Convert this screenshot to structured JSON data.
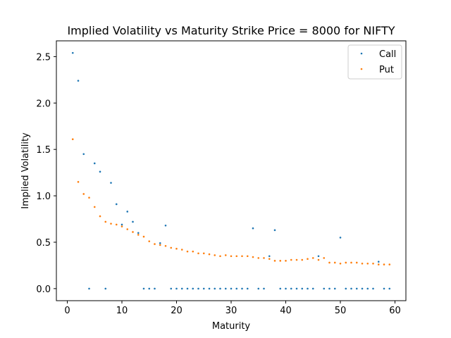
{
  "chart_data": {
    "type": "scatter",
    "title": "Implied Volatility vs Maturity Strike Price = 8000 for NIFTY",
    "xlabel": "Maturity",
    "ylabel": "Implied Volatility",
    "xlim": [
      -2,
      62
    ],
    "ylim": [
      -0.13,
      2.67
    ],
    "xticks": [
      0,
      10,
      20,
      30,
      40,
      50,
      60
    ],
    "yticks": [
      0.0,
      0.5,
      1.0,
      1.5,
      2.0,
      2.5
    ],
    "xtick_labels": [
      "0",
      "10",
      "20",
      "30",
      "40",
      "50",
      "60"
    ],
    "ytick_labels": [
      "0.0",
      "0.5",
      "1.0",
      "1.5",
      "2.0",
      "2.5"
    ],
    "grid": false,
    "legend_position": "top-right",
    "series": [
      {
        "name": "Call",
        "color": "#1f77b4",
        "points": [
          [
            1,
            2.54
          ],
          [
            2,
            2.24
          ],
          [
            3,
            1.45
          ],
          [
            4,
            0.0
          ],
          [
            5,
            1.35
          ],
          [
            6,
            1.26
          ],
          [
            7,
            0.0
          ],
          [
            8,
            1.14
          ],
          [
            9,
            0.91
          ],
          [
            10,
            0.69
          ],
          [
            11,
            0.83
          ],
          [
            12,
            0.72
          ],
          [
            13,
            0.6
          ],
          [
            14,
            0.0
          ],
          [
            15,
            0.0
          ],
          [
            16,
            0.0
          ],
          [
            17,
            0.49
          ],
          [
            18,
            0.68
          ],
          [
            19,
            0.0
          ],
          [
            20,
            0.0
          ],
          [
            21,
            0.0
          ],
          [
            22,
            0.0
          ],
          [
            23,
            0.0
          ],
          [
            24,
            0.0
          ],
          [
            25,
            0.0
          ],
          [
            26,
            0.0
          ],
          [
            27,
            0.0
          ],
          [
            28,
            0.0
          ],
          [
            29,
            0.0
          ],
          [
            30,
            0.0
          ],
          [
            31,
            0.0
          ],
          [
            32,
            0.0
          ],
          [
            33,
            0.0
          ],
          [
            34,
            0.65
          ],
          [
            35,
            0.0
          ],
          [
            36,
            0.0
          ],
          [
            37,
            0.35
          ],
          [
            38,
            0.63
          ],
          [
            39,
            0.0
          ],
          [
            40,
            0.0
          ],
          [
            41,
            0.0
          ],
          [
            42,
            0.0
          ],
          [
            43,
            0.0
          ],
          [
            44,
            0.0
          ],
          [
            45,
            0.0
          ],
          [
            46,
            0.35
          ],
          [
            47,
            0.0
          ],
          [
            48,
            0.0
          ],
          [
            49,
            0.0
          ],
          [
            50,
            0.55
          ],
          [
            51,
            0.0
          ],
          [
            52,
            0.0
          ],
          [
            53,
            0.0
          ],
          [
            54,
            0.0
          ],
          [
            55,
            0.0
          ],
          [
            56,
            0.0
          ],
          [
            57,
            0.29
          ],
          [
            58,
            0.0
          ],
          [
            59,
            0.0
          ]
        ]
      },
      {
        "name": "Put",
        "color": "#ff7f0e",
        "points": [
          [
            1,
            1.61
          ],
          [
            2,
            1.15
          ],
          [
            3,
            1.02
          ],
          [
            4,
            0.98
          ],
          [
            5,
            0.88
          ],
          [
            6,
            0.78
          ],
          [
            7,
            0.72
          ],
          [
            8,
            0.7
          ],
          [
            9,
            0.69
          ],
          [
            10,
            0.67
          ],
          [
            11,
            0.64
          ],
          [
            12,
            0.61
          ],
          [
            13,
            0.58
          ],
          [
            14,
            0.56
          ],
          [
            15,
            0.51
          ],
          [
            16,
            0.48
          ],
          [
            17,
            0.47
          ],
          [
            18,
            0.46
          ],
          [
            19,
            0.44
          ],
          [
            20,
            0.43
          ],
          [
            21,
            0.42
          ],
          [
            22,
            0.4
          ],
          [
            23,
            0.4
          ],
          [
            24,
            0.38
          ],
          [
            25,
            0.38
          ],
          [
            26,
            0.37
          ],
          [
            27,
            0.36
          ],
          [
            28,
            0.35
          ],
          [
            29,
            0.36
          ],
          [
            30,
            0.35
          ],
          [
            31,
            0.35
          ],
          [
            32,
            0.35
          ],
          [
            33,
            0.35
          ],
          [
            34,
            0.34
          ],
          [
            35,
            0.33
          ],
          [
            36,
            0.33
          ],
          [
            37,
            0.32
          ],
          [
            38,
            0.3
          ],
          [
            39,
            0.3
          ],
          [
            40,
            0.3
          ],
          [
            41,
            0.31
          ],
          [
            42,
            0.31
          ],
          [
            43,
            0.31
          ],
          [
            44,
            0.32
          ],
          [
            45,
            0.33
          ],
          [
            46,
            0.31
          ],
          [
            47,
            0.33
          ],
          [
            48,
            0.28
          ],
          [
            49,
            0.28
          ],
          [
            50,
            0.27
          ],
          [
            51,
            0.28
          ],
          [
            52,
            0.28
          ],
          [
            53,
            0.28
          ],
          [
            54,
            0.27
          ],
          [
            55,
            0.27
          ],
          [
            56,
            0.27
          ],
          [
            57,
            0.26
          ],
          [
            58,
            0.26
          ],
          [
            59,
            0.26
          ]
        ]
      }
    ]
  }
}
